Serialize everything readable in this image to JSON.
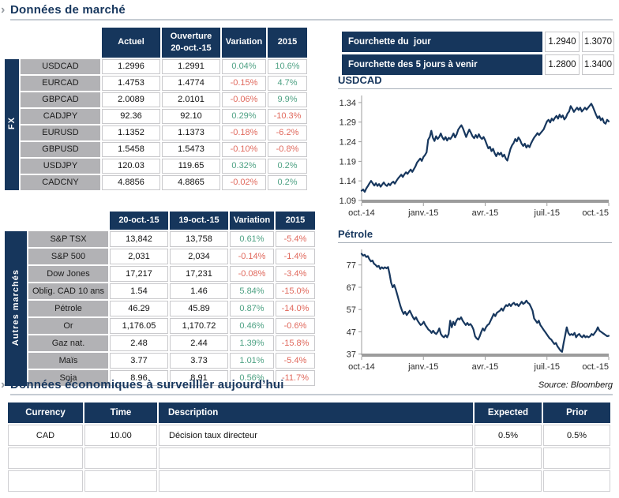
{
  "colors": {
    "navy": "#16365C",
    "green": "#4DA183",
    "red": "#E0685C",
    "label_gray": "#B2B2B5",
    "line": "#17375E"
  },
  "icons": {
    "chevron": "›"
  },
  "section1": {
    "title": "Données de marché"
  },
  "section2": {
    "title": "Données économiques à surveilller aujourd’hui",
    "source": "Source: Bloomberg"
  },
  "fx_table": {
    "group_label": "FX",
    "col_headers": {
      "c1": "Actuel",
      "c2_line1": "Ouverture",
      "c2_line2": "20-oct.-15",
      "variation": "Variation",
      "ytd": "2015"
    },
    "rows": [
      {
        "label": "USDCAD",
        "c1": "1.2996",
        "c2": "1.2991",
        "variation": "0.04%",
        "ytd": "10.6%"
      },
      {
        "label": "EURCAD",
        "c1": "1.4753",
        "c2": "1.4774",
        "variation": "-0.15%",
        "ytd": "4.7%"
      },
      {
        "label": "GBPCAD",
        "c1": "2.0089",
        "c2": "2.0101",
        "variation": "-0.06%",
        "ytd": "9.9%"
      },
      {
        "label": "CADJPY",
        "c1": "92.36",
        "c2": "92.10",
        "variation": "0.29%",
        "ytd": "-10.3%"
      },
      {
        "label": "EURUSD",
        "c1": "1.1352",
        "c2": "1.1373",
        "variation": "-0.18%",
        "ytd": "-6.2%"
      },
      {
        "label": "GBPUSD",
        "c1": "1.5458",
        "c2": "1.5473",
        "variation": "-0.10%",
        "ytd": "-0.8%"
      },
      {
        "label": "USDJPY",
        "c1": "120.03",
        "c2": "119.65",
        "variation": "0.32%",
        "ytd": "0.2%"
      },
      {
        "label": "CADCNY",
        "c1": "4.8856",
        "c2": "4.8865",
        "variation": "-0.02%",
        "ytd": "0.2%"
      }
    ]
  },
  "fourchette": {
    "rows": [
      {
        "label": "Fourchette du  jour",
        "low": "1.2940",
        "high": "1.3070"
      },
      {
        "label": "Fourchette des 5 jours à venir",
        "low": "1.2800",
        "high": "1.3400"
      }
    ]
  },
  "markets_table": {
    "group_label": "Autres marchés",
    "col_headers": {
      "c1": "20-oct.-15",
      "c2": "19-oct.-15",
      "variation": "Variation",
      "ytd": "2015"
    },
    "rows": [
      {
        "label": "S&P TSX",
        "c1": "13,842",
        "c2": "13,758",
        "variation": "0.61%",
        "ytd": "-5.4%"
      },
      {
        "label": "S&P 500",
        "c1": "2,031",
        "c2": "2,034",
        "variation": "-0.14%",
        "ytd": "-1.4%"
      },
      {
        "label": "Dow Jones",
        "c1": "17,217",
        "c2": "17,231",
        "variation": "-0.08%",
        "ytd": "-3.4%"
      },
      {
        "label": "Oblig. CAD 10 ans",
        "c1": "1.54",
        "c2": "1.46",
        "variation": "5.84%",
        "ytd": "-15.0%"
      },
      {
        "label": "Pétrole",
        "c1": "46.29",
        "c2": "45.89",
        "variation": "0.87%",
        "ytd": "-14.0%"
      },
      {
        "label": "Or",
        "c1": "1,176.05",
        "c2": "1,170.72",
        "variation": "0.46%",
        "ytd": "-0.6%"
      },
      {
        "label": "Gaz nat.",
        "c1": "2.48",
        "c2": "2.44",
        "variation": "1.39%",
        "ytd": "-15.8%"
      },
      {
        "label": "Maïs",
        "c1": "3.77",
        "c2": "3.73",
        "variation": "1.01%",
        "ytd": "-5.4%"
      },
      {
        "label": "Soja",
        "c1": "8.96",
        "c2": "8.91",
        "variation": "0.56%",
        "ytd": "-11.7%"
      }
    ]
  },
  "econ": {
    "headers": [
      "Currency",
      "Time",
      "Description",
      "Expected",
      "Prior"
    ],
    "rows": [
      [
        "CAD",
        "10.00",
        "Décision taux directeur",
        "0.5%",
        "0.5%"
      ],
      [
        "",
        "",
        "",
        "",
        ""
      ],
      [
        "",
        "",
        "",
        "",
        ""
      ]
    ]
  },
  "chart_data": [
    {
      "type": "line",
      "title": "USDCAD",
      "x_labels": [
        "oct.-14",
        "janv.-15",
        "avr.-15",
        "juil.-15",
        "oct.-15"
      ],
      "y_ticks": [
        1.09,
        1.14,
        1.19,
        1.24,
        1.29,
        1.34
      ],
      "y_tick_labels": [
        "1.09",
        "1.14",
        "1.19",
        "1.24",
        "1.29",
        "1.34"
      ],
      "y_domain": [
        1.088,
        1.358
      ],
      "line_color": "#17375E",
      "values": [
        1.115,
        1.118,
        1.112,
        1.121,
        1.127,
        1.134,
        1.14,
        1.134,
        1.128,
        1.134,
        1.127,
        1.132,
        1.125,
        1.131,
        1.136,
        1.13,
        1.127,
        1.133,
        1.129,
        1.135,
        1.138,
        1.133,
        1.14,
        1.146,
        1.151,
        1.156,
        1.15,
        1.157,
        1.162,
        1.158,
        1.164,
        1.169,
        1.163,
        1.17,
        1.177,
        1.187,
        1.192,
        1.197,
        1.191,
        1.201,
        1.206,
        1.213,
        1.245,
        1.252,
        1.268,
        1.25,
        1.242,
        1.254,
        1.247,
        1.252,
        1.261,
        1.251,
        1.245,
        1.252,
        1.243,
        1.25,
        1.247,
        1.253,
        1.261,
        1.251,
        1.259,
        1.271,
        1.277,
        1.282,
        1.274,
        1.263,
        1.252,
        1.262,
        1.271,
        1.263,
        1.254,
        1.249,
        1.257,
        1.25,
        1.259,
        1.251,
        1.247,
        1.252,
        1.244,
        1.233,
        1.223,
        1.227,
        1.216,
        1.222,
        1.211,
        1.203,
        1.212,
        1.207,
        1.212,
        1.202,
        1.207,
        1.197,
        1.192,
        1.207,
        1.222,
        1.231,
        1.237,
        1.247,
        1.241,
        1.251,
        1.245,
        1.235,
        1.229,
        1.235,
        1.225,
        1.231,
        1.226,
        1.236,
        1.244,
        1.251,
        1.256,
        1.262,
        1.257,
        1.262,
        1.267,
        1.272,
        1.282,
        1.292,
        1.296,
        1.289,
        1.299,
        1.294,
        1.301,
        1.306,
        1.299,
        1.309,
        1.302,
        1.307,
        1.297,
        1.302,
        1.312,
        1.317,
        1.331,
        1.324,
        1.316,
        1.322,
        1.327,
        1.321,
        1.327,
        1.317,
        1.322,
        1.327,
        1.322,
        1.327,
        1.332,
        1.337,
        1.329,
        1.319,
        1.309,
        1.3,
        1.305,
        1.295,
        1.3,
        1.289,
        1.286,
        1.296,
        1.292
      ]
    },
    {
      "type": "line",
      "title": "Pétrole",
      "x_labels": [
        "oct.-14",
        "janv.-15",
        "avr.-15",
        "juil.-15",
        "oct.-15"
      ],
      "y_ticks": [
        37,
        47,
        57,
        67,
        77
      ],
      "y_tick_labels": [
        "37",
        "47",
        "57",
        "67",
        "77"
      ],
      "y_domain": [
        36.5,
        84
      ],
      "line_color": "#17375E",
      "values": [
        82.0,
        81.2,
        81.6,
        80.6,
        81.0,
        79.6,
        78.6,
        79.0,
        77.6,
        77.0,
        76.2,
        76.6,
        75.2,
        76.0,
        75.4,
        76.0,
        75.5,
        76.1,
        73.0,
        69.0,
        67.0,
        68.0,
        66.0,
        63.5,
        61.0,
        58.5,
        56.5,
        55.0,
        56.0,
        54.5,
        55.5,
        56.5,
        55.0,
        53.5,
        52.5,
        53.5,
        52.0,
        51.0,
        50.0,
        50.5,
        51.5,
        50.0,
        49.0,
        48.0,
        47.5,
        46.5,
        47.5,
        46.5,
        46.0,
        47.0,
        48.5,
        46.0,
        45.0,
        44.5,
        45.5,
        44.5,
        46.0,
        52.0,
        49.0,
        51.5,
        50.0,
        52.0,
        53.0,
        52.5,
        53.5,
        52.0,
        51.0,
        50.0,
        51.0,
        50.0,
        50.5,
        49.5,
        48.0,
        45.0,
        44.0,
        43.5,
        45.0,
        47.0,
        48.5,
        47.5,
        49.0,
        50.0,
        50.5,
        52.0,
        53.5,
        55.0,
        54.0,
        55.5,
        56.0,
        56.5,
        57.5,
        56.5,
        58.0,
        59.0,
        58.5,
        59.5,
        58.5,
        59.5,
        60.0,
        59.0,
        59.5,
        58.5,
        59.5,
        60.5,
        59.5,
        60.0,
        61.0,
        60.0,
        59.5,
        58.0,
        56.5,
        53.0,
        52.0,
        51.0,
        52.0,
        50.0,
        49.0,
        48.0,
        47.0,
        46.0,
        45.0,
        44.0,
        43.5,
        42.5,
        41.5,
        42.0,
        40.5,
        39.5,
        38.5,
        38.0,
        42.0,
        45.5,
        49.0,
        46.5,
        45.5,
        46.0,
        45.5,
        46.5,
        44.5,
        45.5,
        46.0,
        45.0,
        44.5,
        45.5,
        44.5,
        45.0,
        44.5,
        45.0,
        46.0,
        45.5,
        46.5,
        47.5,
        49.0,
        47.5,
        47.0,
        46.5,
        46.0,
        45.5,
        45.0,
        45.2
      ]
    }
  ]
}
